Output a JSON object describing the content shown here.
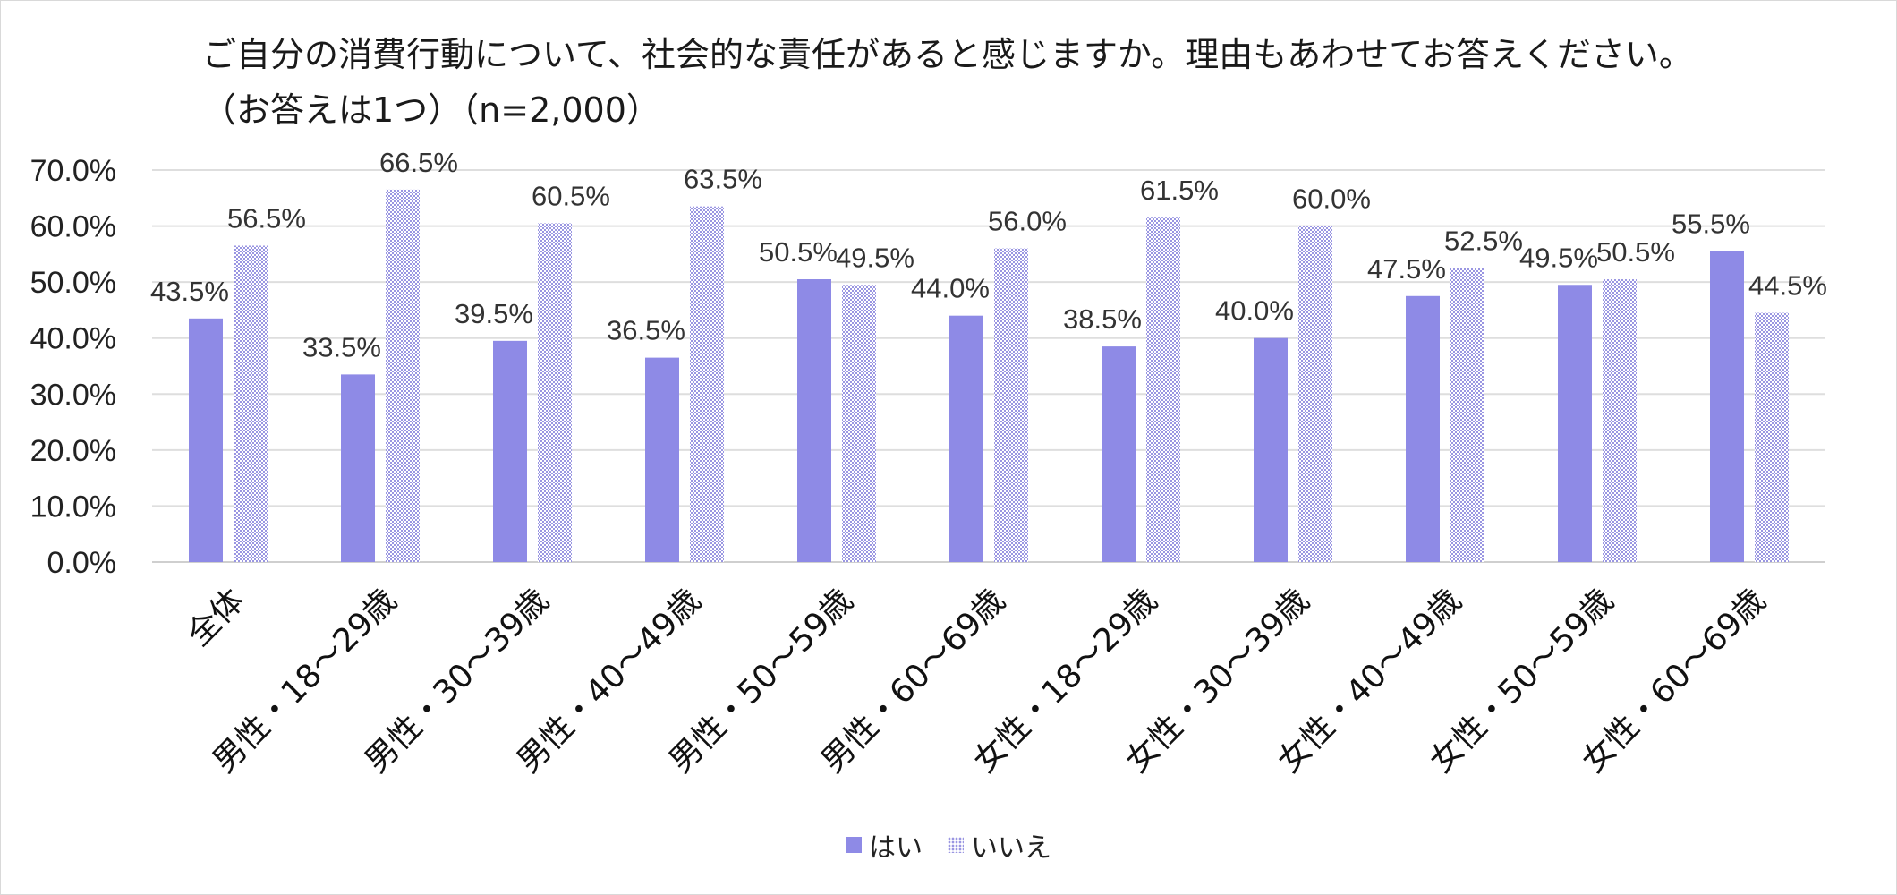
{
  "chart_data": {
    "type": "bar",
    "title": "ご自分の消費行動について、社会的な責任があると感じますか。理由もあわせてお答えください。（お答えは1つ）（n=2,000）",
    "categories": [
      "全体",
      "男性・18～29歳",
      "男性・30～39歳",
      "男性・40～49歳",
      "男性・50～59歳",
      "男性・60～69歳",
      "女性・18～29歳",
      "女性・30～39歳",
      "女性・40～49歳",
      "女性・50～59歳",
      "女性・60～69歳"
    ],
    "series": [
      {
        "name": "はい",
        "values": [
          43.5,
          33.5,
          39.5,
          36.5,
          50.5,
          44.0,
          38.5,
          40.0,
          47.5,
          49.5,
          55.5
        ],
        "color": "#8e8ae6",
        "pattern": "solid"
      },
      {
        "name": "いいえ",
        "values": [
          56.5,
          66.5,
          60.5,
          63.5,
          49.5,
          56.0,
          61.5,
          60.0,
          52.5,
          50.5,
          44.5
        ],
        "color": "#9a96e2",
        "pattern": "dots"
      }
    ],
    "data_labels": [
      [
        "43.5%",
        "33.5%",
        "39.5%",
        "36.5%",
        "50.5%",
        "44.0%",
        "38.5%",
        "40.0%",
        "47.5%",
        "49.5%",
        "55.5%"
      ],
      [
        "56.5%",
        "66.5%",
        "60.5%",
        "63.5%",
        "49.5%",
        "56.0%",
        "61.5%",
        "60.0%",
        "52.5%",
        "50.5%",
        "44.5%"
      ]
    ],
    "y_ticks": [
      "0.0%",
      "10.0%",
      "20.0%",
      "30.0%",
      "40.0%",
      "50.0%",
      "60.0%",
      "70.0%"
    ],
    "ylim": [
      0,
      70
    ],
    "xlabel": "",
    "ylabel": "",
    "grid": true,
    "legend_position": "bottom"
  }
}
